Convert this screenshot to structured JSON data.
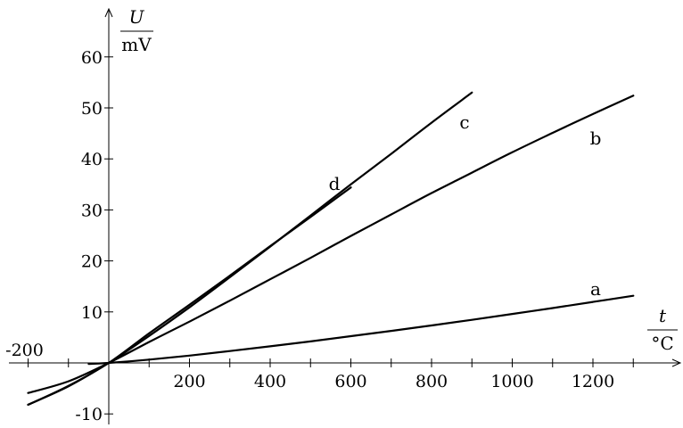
{
  "chart_data": {
    "type": "line",
    "title": "",
    "x_axis": {
      "symbol": "t",
      "unit": "°C",
      "range": [
        -230,
        1400
      ],
      "labeled_ticks": [
        -200,
        200,
        400,
        600,
        800,
        1000,
        1200
      ],
      "tick_labels": [
        "-200",
        "200",
        "400",
        "600",
        "800",
        "1000",
        "1200"
      ],
      "minor_ticks": [
        -100,
        100,
        300,
        500,
        700,
        900,
        1100,
        1300
      ]
    },
    "y_axis": {
      "symbol": "U",
      "unit": "mV",
      "range": [
        -12,
        70
      ],
      "labeled_ticks": [
        -10,
        10,
        20,
        30,
        40,
        50,
        60
      ],
      "tick_labels": [
        "-10",
        "10",
        "20",
        "30",
        "40",
        "50",
        "60"
      ]
    },
    "grid": false,
    "legend": "none; curves labeled directly",
    "series": [
      {
        "name": "a",
        "x": [
          -50,
          0,
          100,
          200,
          300,
          400,
          500,
          600,
          700,
          800,
          900,
          1000,
          1100,
          1200,
          1300
        ],
        "y": [
          -0.2,
          0,
          0.65,
          1.44,
          2.32,
          3.26,
          4.22,
          5.24,
          6.27,
          7.35,
          8.45,
          9.59,
          10.76,
          11.95,
          13.16
        ]
      },
      {
        "name": "b",
        "x": [
          -200,
          -100,
          0,
          100,
          200,
          300,
          400,
          500,
          600,
          700,
          800,
          900,
          1000,
          1100,
          1200,
          1300
        ],
        "y": [
          -5.9,
          -3.6,
          0,
          4.1,
          8.1,
          12.2,
          16.4,
          20.6,
          24.9,
          29.1,
          33.3,
          37.3,
          41.3,
          45.1,
          48.8,
          52.4
        ]
      },
      {
        "name": "c",
        "x": [
          -200,
          -100,
          0,
          100,
          200,
          300,
          400,
          500,
          600,
          700,
          800,
          900
        ],
        "y": [
          -8.2,
          -4.6,
          0,
          5.3,
          10.9,
          16.8,
          22.8,
          28.9,
          35.0,
          41.0,
          47.1,
          53.0
        ]
      },
      {
        "name": "d",
        "x": [
          -200,
          -100,
          0,
          100,
          200,
          300,
          400,
          500,
          600
        ],
        "y": [
          -8.2,
          -4.5,
          0,
          5.8,
          11.4,
          17.1,
          22.9,
          28.6,
          34.4
        ]
      }
    ]
  }
}
